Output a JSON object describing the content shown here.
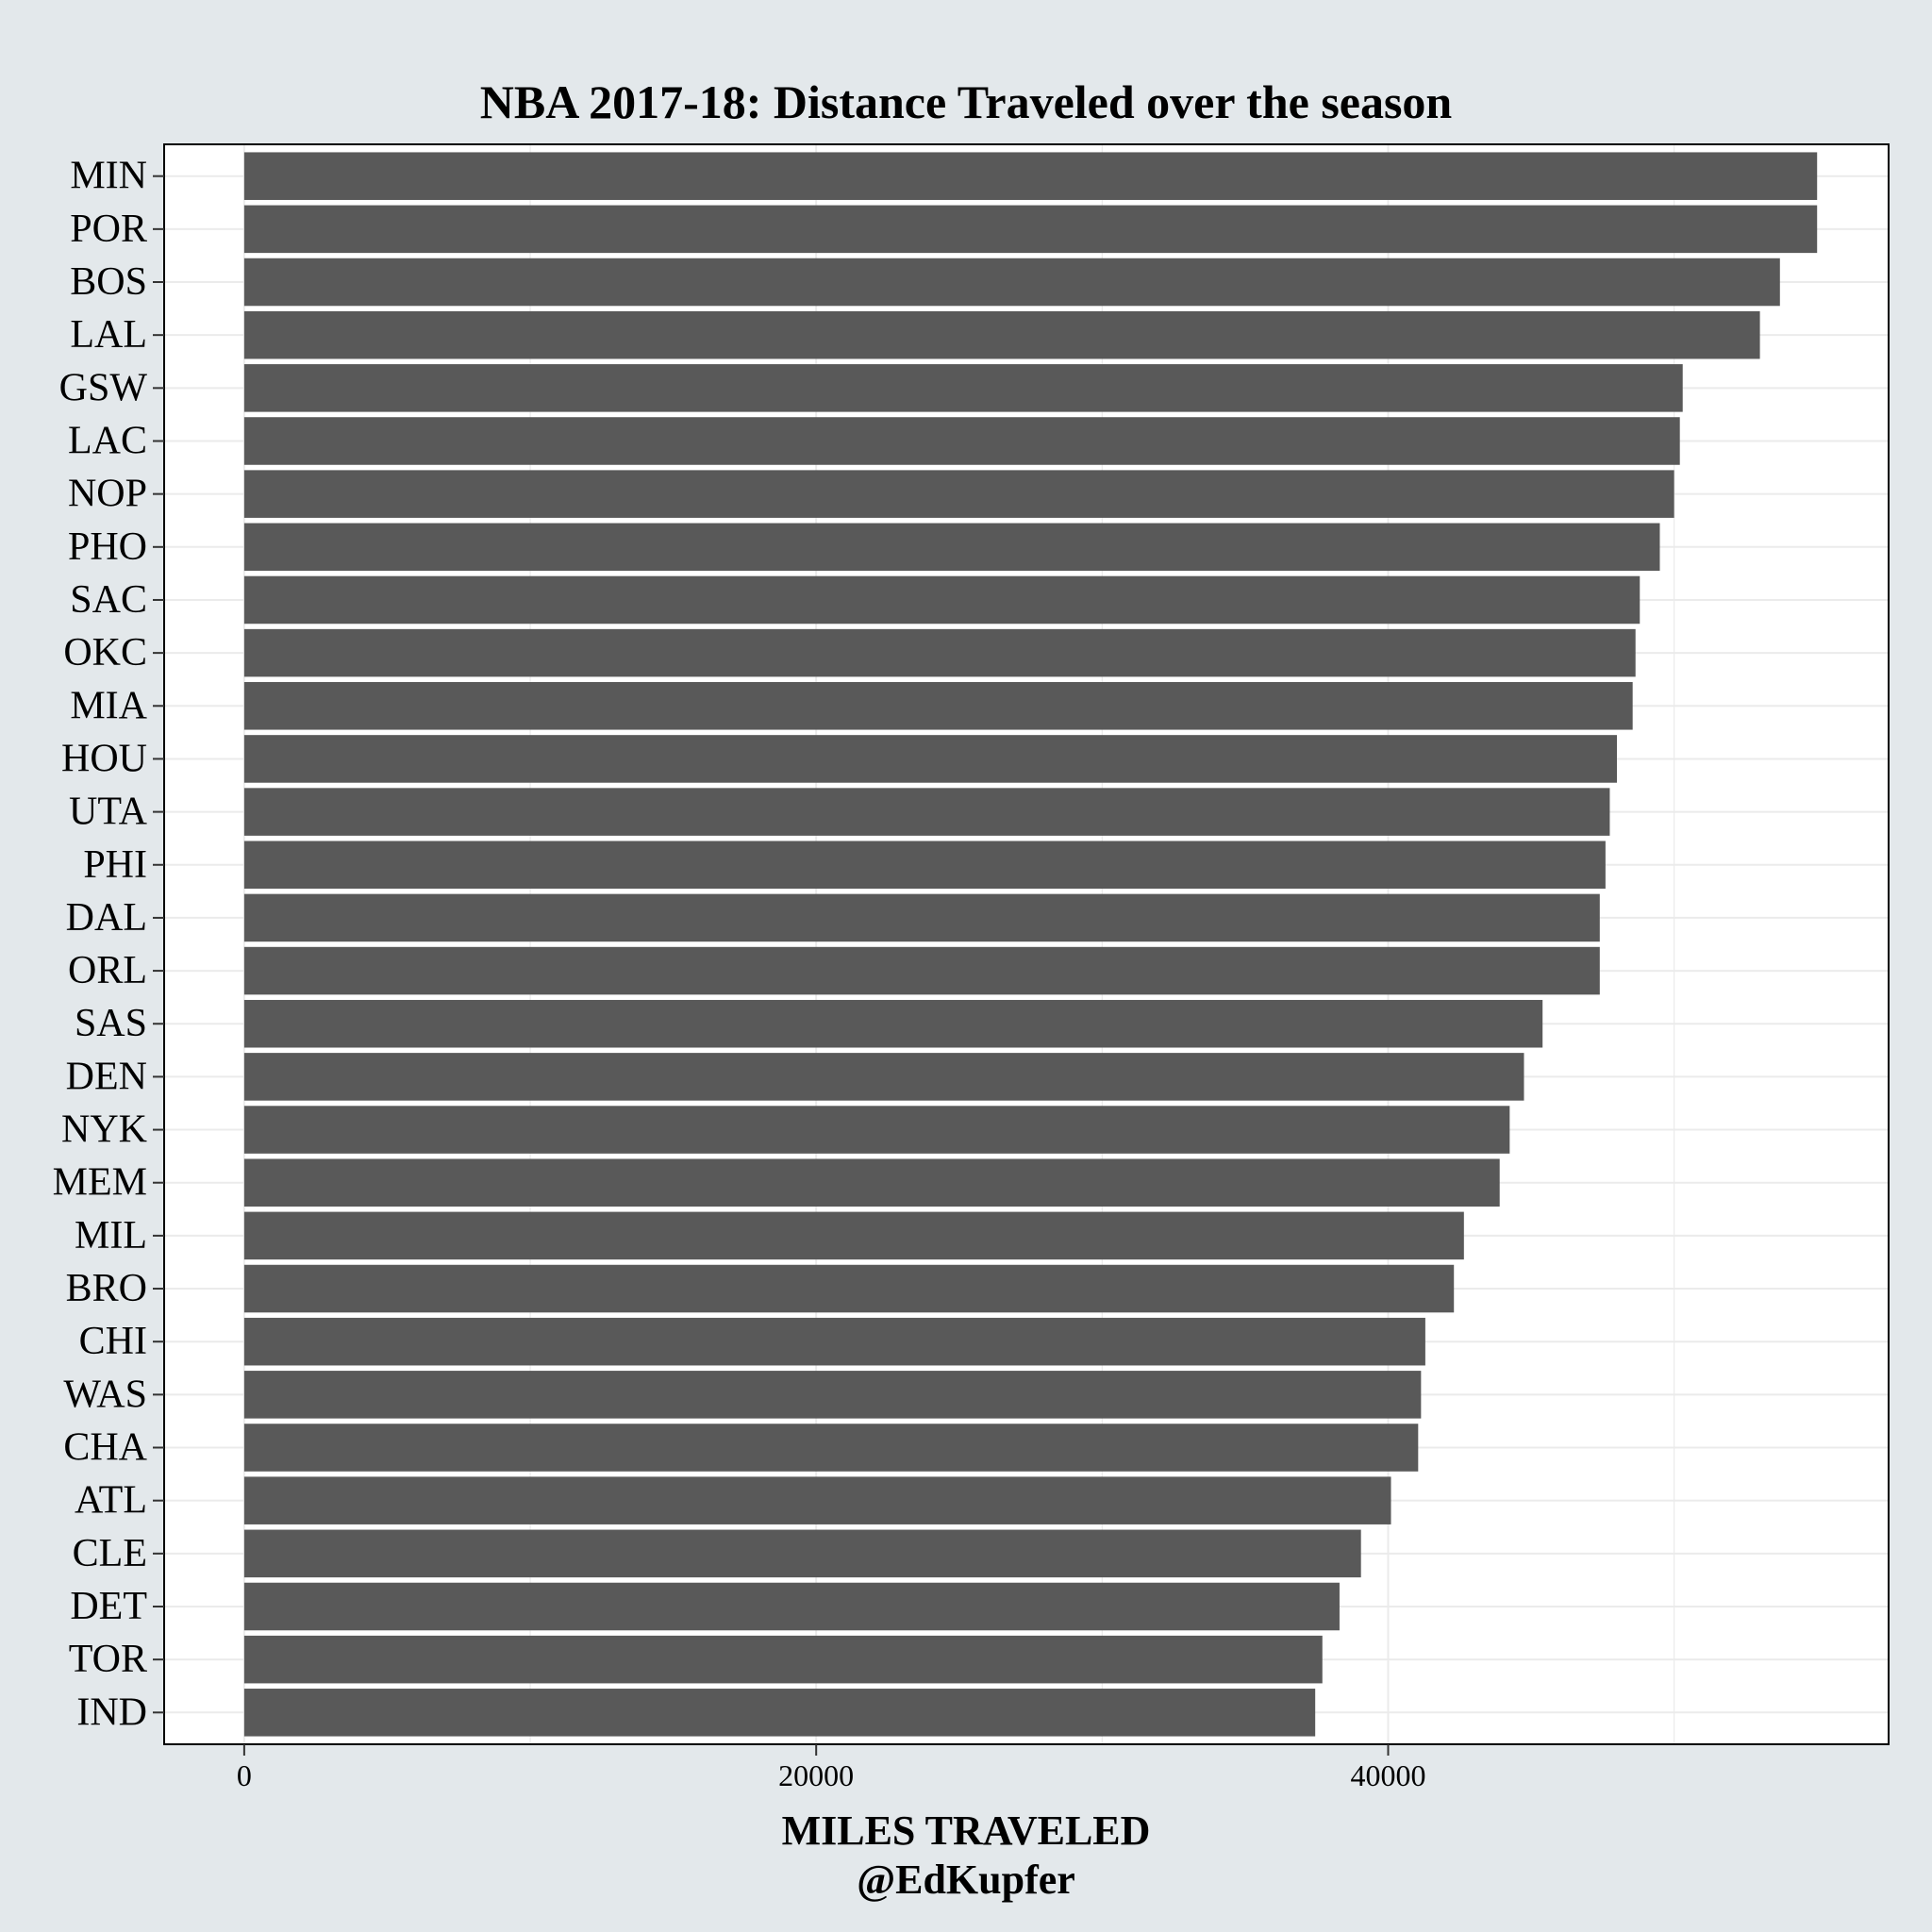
{
  "chart_data": {
    "type": "bar",
    "orientation": "horizontal",
    "title": "NBA 2017-18: Distance Traveled over the season",
    "xlabel": "MILES TRAVELED",
    "xlabel_credit": "@EdKupfer",
    "ylabel": "",
    "xlim": [
      -2800,
      57500
    ],
    "xticks": [
      0,
      20000,
      40000
    ],
    "xtick_labels": [
      "0",
      "20000",
      "40000"
    ],
    "grid": true,
    "bar_color": "#595959",
    "panel_background": "#ffffff",
    "figure_background": "#e3e8eb",
    "categories": [
      "MIN",
      "POR",
      "BOS",
      "LAL",
      "GSW",
      "LAC",
      "NOP",
      "PHO",
      "SAC",
      "OKC",
      "MIA",
      "HOU",
      "UTA",
      "PHI",
      "DAL",
      "ORL",
      "SAS",
      "DEN",
      "NYK",
      "MEM",
      "MIL",
      "BRO",
      "CHI",
      "WAS",
      "CHA",
      "ATL",
      "CLE",
      "DET",
      "TOR",
      "IND"
    ],
    "values": [
      55000,
      55000,
      53700,
      53000,
      50300,
      50200,
      50000,
      49500,
      48800,
      48650,
      48550,
      48000,
      47750,
      47600,
      47400,
      47400,
      45400,
      44750,
      44250,
      43900,
      42650,
      42300,
      41300,
      41150,
      41050,
      40100,
      39050,
      38300,
      37700,
      37450
    ]
  }
}
